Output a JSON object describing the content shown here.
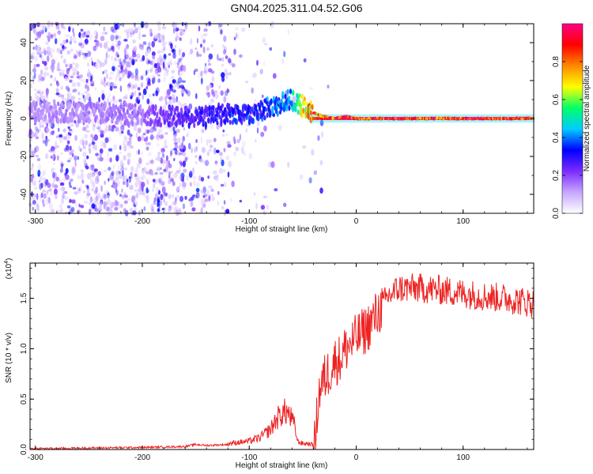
{
  "title": "GN04.2025.311.04.52.G06",
  "chart_data": [
    {
      "type": "heatmap",
      "xlabel": "Height of straight line (km)",
      "ylabel": "Frequency (Hz)",
      "xlim": [
        -305,
        166
      ],
      "ylim": [
        -50,
        50
      ],
      "xticks": [
        -300,
        -200,
        -100,
        0,
        100
      ],
      "yticks": [
        -40,
        -20,
        0,
        20,
        40
      ],
      "colorbar": {
        "label": "Normalized spectral amplitude",
        "range": [
          0,
          1
        ],
        "ticks": [
          0.0,
          0.2,
          0.4,
          0.6,
          0.8
        ],
        "colors": [
          "#ffffff",
          "#c6a6ff",
          "#7b2cff",
          "#0000ff",
          "#00ccff",
          "#00ff66",
          "#ffff00",
          "#ff8800",
          "#ff0000",
          "#ff0088"
        ]
      },
      "ridge": {
        "x": [
          -300,
          -250,
          -200,
          -175,
          -150,
          -125,
          -100,
          -85,
          -70,
          -62,
          -55,
          -48,
          -40,
          -30,
          -20,
          -10,
          0,
          50,
          100,
          166
        ],
        "freq": [
          4,
          3,
          2,
          1,
          1,
          2,
          3,
          5,
          8,
          10,
          8,
          6,
          3,
          1,
          0,
          1,
          0,
          0,
          0,
          0
        ],
        "amplitude": [
          0.15,
          0.16,
          0.18,
          0.25,
          0.3,
          0.33,
          0.35,
          0.4,
          0.42,
          0.45,
          0.65,
          0.75,
          0.85,
          0.9,
          0.92,
          0.94,
          0.95,
          0.96,
          0.96,
          0.96
        ]
      },
      "grid": false
    },
    {
      "type": "line",
      "xlabel": "Height of straight line (km)",
      "ylabel": "SNR (10 * v/v)",
      "yscale_label": "(x10",
      "yscale_exponent": "4",
      "yscale_close": ")",
      "xlim": [
        -305,
        166
      ],
      "ylim": [
        0,
        1.85
      ],
      "xticks": [
        -300,
        -200,
        -100,
        0,
        100
      ],
      "yticks": [
        0.0,
        0.5,
        1.0,
        1.5
      ],
      "series": [
        {
          "color": "#ee2222",
          "x": [
            -305,
            -280,
            -250,
            -200,
            -160,
            -150,
            -140,
            -120,
            -100,
            -90,
            -80,
            -75,
            -70,
            -65,
            -60,
            -57,
            -55,
            -50,
            -45,
            -40,
            -38,
            -36,
            -34,
            -30,
            -25,
            -20,
            -15,
            -10,
            -5,
            0,
            10,
            20,
            30,
            40,
            60,
            80,
            100,
            120,
            140,
            166
          ],
          "values": [
            0.01,
            0.01,
            0.015,
            0.02,
            0.03,
            0.05,
            0.04,
            0.05,
            0.07,
            0.1,
            0.17,
            0.25,
            0.3,
            0.32,
            0.25,
            0.18,
            0.07,
            0.05,
            0.05,
            0.04,
            0.1,
            0.45,
            0.6,
            0.7,
            0.78,
            0.88,
            0.9,
            1.0,
            1.05,
            1.1,
            1.2,
            1.35,
            1.52,
            1.6,
            1.6,
            1.58,
            1.55,
            1.52,
            1.5,
            1.45
          ]
        }
      ],
      "grid": false
    }
  ]
}
